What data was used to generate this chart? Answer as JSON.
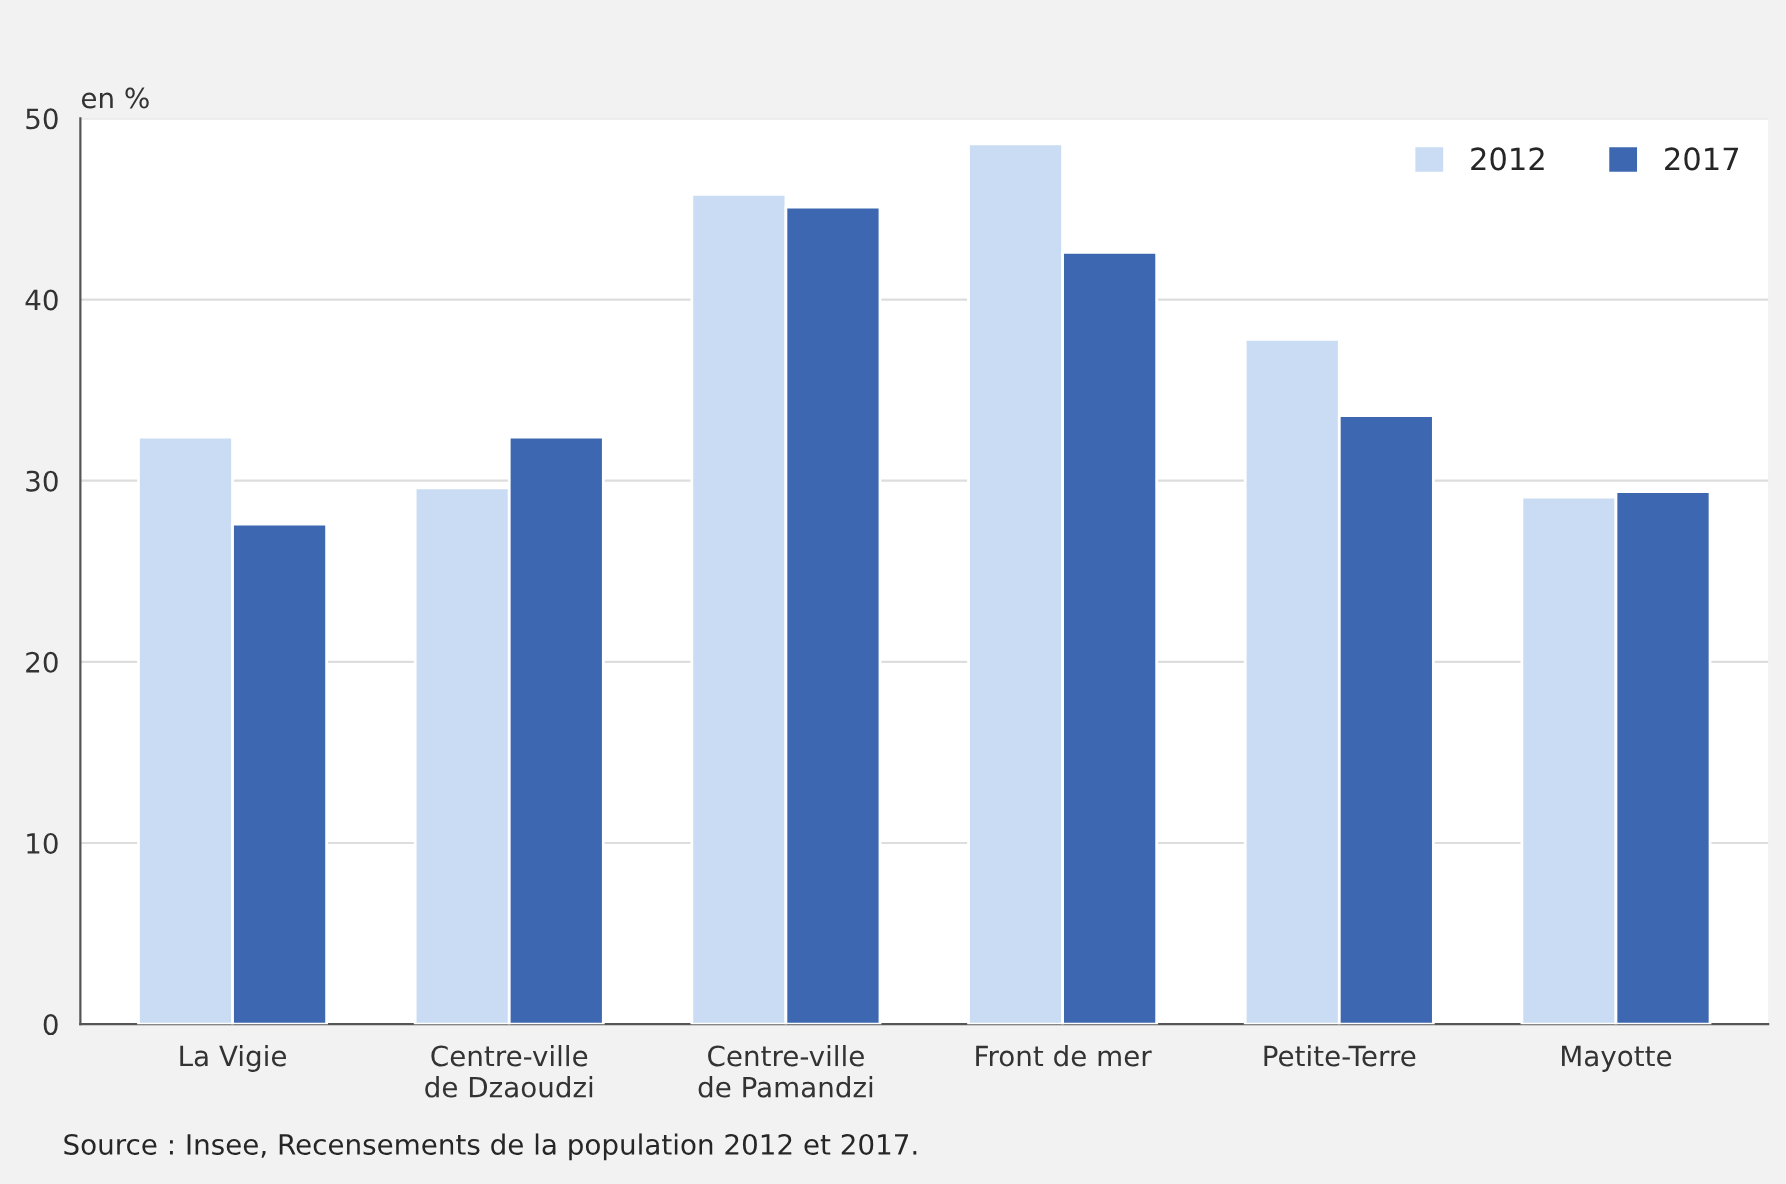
{
  "chart_data": {
    "type": "bar",
    "ylabel": "en %",
    "categories": [
      "La Vigie",
      "Centre-ville\nde Dzaoudzi",
      "Centre-ville\nde Pamandzi",
      "Front de mer",
      "Petite-Terre",
      "Mayotte"
    ],
    "series": [
      {
        "name": "2012",
        "color": "#c9dcf3",
        "values": [
          32.4,
          29.6,
          45.8,
          48.6,
          37.8,
          29.1
        ]
      },
      {
        "name": "2017",
        "color": "#3d67b0",
        "values": [
          27.6,
          32.4,
          45.1,
          42.6,
          33.6,
          29.4
        ]
      }
    ],
    "ylim": [
      0,
      50
    ],
    "yticks": [
      0,
      10,
      20,
      30,
      40,
      50
    ],
    "grid": "y",
    "legend": "top right",
    "annotations": [
      "Source : Insee, Recensements de la population 2012 et 2017."
    ]
  }
}
